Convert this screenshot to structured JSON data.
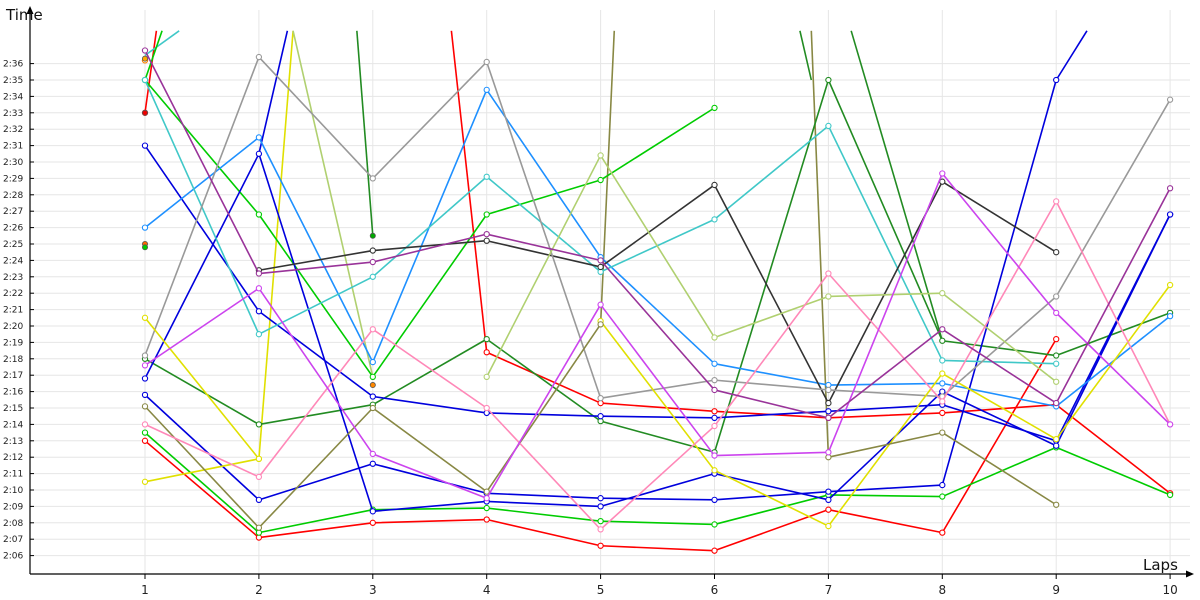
{
  "chart_data": {
    "type": "line",
    "title": "",
    "xlabel": "Laps",
    "ylabel": "Time",
    "x": [
      1,
      2,
      3,
      4,
      5,
      6,
      7,
      8,
      9,
      10
    ],
    "x_tick_labels": [
      "1",
      "2",
      "3",
      "4",
      "5",
      "6",
      "7",
      "8",
      "9",
      "10"
    ],
    "y_tick_labels": [
      "2:06",
      "2:07",
      "2:08",
      "2:09",
      "2:10",
      "2:11",
      "2:12",
      "2:13",
      "2:14",
      "2:15",
      "2:16",
      "2:17",
      "2:18",
      "2:19",
      "2:20",
      "2:21",
      "2:22",
      "2:23",
      "2:24",
      "2:25",
      "2:26",
      "2:27",
      "2:28",
      "2:29",
      "2:30",
      "2:31",
      "2:32",
      "2:33",
      "2:34",
      "2:35",
      "2:36"
    ],
    "ylim_seconds": [
      125,
      156.5
    ],
    "grid": true,
    "legend": "none",
    "series": [
      {
        "color": "#ff0000",
        "values": [
          153.0,
          null,
          null,
          138.4,
          135.3,
          134.8,
          134.4,
          134.7,
          135.2,
          129.8
        ]
      },
      {
        "color": "#ff0000",
        "values": [
          133.0,
          127.1,
          128.0,
          128.2,
          126.6,
          126.3,
          128.8,
          127.4,
          139.2,
          null
        ]
      },
      {
        "color": "#00cc00",
        "values": [
          155.0,
          146.8,
          136.9,
          146.8,
          148.9,
          153.3,
          null,
          null,
          null,
          null
        ]
      },
      {
        "color": "#00cc00",
        "values": [
          133.5,
          127.4,
          128.8,
          128.9,
          128.1,
          127.9,
          129.7,
          129.6,
          132.6,
          129.7
        ]
      },
      {
        "color": "#228b22",
        "values": [
          138.0,
          134.0,
          135.2,
          139.2,
          134.2,
          132.3,
          155.0,
          139.1,
          138.2,
          140.8
        ]
      },
      {
        "color": "#0000dd",
        "values": [
          151.0,
          140.9,
          135.7,
          134.7,
          134.5,
          134.4,
          134.8,
          135.2,
          133.0,
          146.8
        ]
      },
      {
        "color": "#0000dd",
        "values": [
          135.8,
          129.4,
          131.6,
          129.8,
          129.5,
          129.4,
          129.9,
          130.3,
          155.0,
          null
        ]
      },
      {
        "color": "#0000dd",
        "values": [
          136.8,
          150.5,
          128.7,
          129.3,
          129.0,
          131.0,
          129.4,
          136.0,
          132.7,
          146.8
        ]
      },
      {
        "color": "#1e90ff",
        "values": [
          146.0,
          151.5,
          137.8,
          154.4,
          144.2,
          137.7,
          136.4,
          136.5,
          135.1,
          140.6
        ]
      },
      {
        "color": "#40c8c8",
        "values": [
          155.0,
          139.5,
          143.0,
          149.1,
          143.3,
          146.5,
          152.2,
          137.9,
          137.7,
          null
        ]
      },
      {
        "color": "#333333",
        "values": [
          null,
          143.4,
          144.6,
          145.2,
          143.6,
          148.6,
          135.3,
          148.8,
          144.5,
          null
        ]
      },
      {
        "color": "#999999",
        "values": [
          138.2,
          156.4,
          149.0,
          156.1,
          135.6,
          136.7,
          136.1,
          135.7,
          141.8,
          153.8
        ]
      },
      {
        "color": "#b0d070",
        "values": [
          null,
          null,
          null,
          136.9,
          150.4,
          139.3,
          141.8,
          142.0,
          136.6,
          null
        ]
      },
      {
        "color": "#e0e000",
        "values": [
          140.5,
          131.9,
          null,
          null,
          140.3,
          131.2,
          127.8,
          137.1,
          133.1,
          142.5
        ]
      },
      {
        "color": "#e0e000",
        "values": [
          130.5,
          131.9,
          null,
          null,
          null,
          null,
          null,
          null,
          null,
          null
        ]
      },
      {
        "color": "#888844",
        "values": [
          135.1,
          127.7,
          135.0,
          129.9,
          140.1,
          null,
          null,
          null,
          null,
          null
        ]
      },
      {
        "color": "#888844",
        "values": [
          null,
          null,
          null,
          null,
          null,
          null,
          132.0,
          133.5,
          129.1,
          null
        ]
      },
      {
        "color": "#ff88b8",
        "values": [
          134.0,
          130.8,
          139.8,
          135.0,
          127.6,
          133.9,
          143.2,
          135.4,
          147.6,
          134.0
        ]
      },
      {
        "color": "#cc44ee",
        "values": [
          137.6,
          142.3,
          132.2,
          129.5,
          141.3,
          132.1,
          132.3,
          149.3,
          140.8,
          134.0
        ]
      },
      {
        "color": "#993399",
        "values": [
          156.8,
          143.2,
          143.9,
          145.6,
          144.0,
          136.1,
          134.4,
          139.8,
          135.3,
          148.4
        ]
      },
      {
        "color": "#ff6633",
        "values": [
          156.2,
          null,
          null,
          null,
          null,
          null,
          null,
          null,
          null,
          null
        ]
      },
      {
        "color": "#ff8800",
        "values": [
          156.2,
          null,
          null,
          null,
          null,
          null,
          null,
          null,
          null,
          null
        ]
      }
    ],
    "isolated_points": [
      {
        "color": "#ff6600",
        "x": 1,
        "value": 145.0
      },
      {
        "color": "#00cc00",
        "x": 1,
        "value": 144.8
      },
      {
        "color": "#ffaa00",
        "x": 1,
        "value": 156.3
      },
      {
        "color": "#ee0000",
        "x": 1,
        "value": 153.0
      },
      {
        "color": "#00aa00",
        "x": 3,
        "value": 145.5
      },
      {
        "color": "#ff8800",
        "x": 3,
        "value": 136.4
      }
    ],
    "offscreen_segments": [
      {
        "color": "#ff0000",
        "x": [
          1,
          1.1
        ],
        "values": [
          153.0,
          158.0
        ]
      },
      {
        "color": "#40c8c8",
        "x": [
          1,
          1.3
        ],
        "values": [
          156.5,
          158.0
        ]
      },
      {
        "color": "#00cc00",
        "x": [
          1,
          1.15
        ],
        "values": [
          155.0,
          158.0
        ]
      },
      {
        "color": "#0000dd",
        "x": [
          2,
          2.25
        ],
        "values": [
          150.5,
          158.0
        ]
      },
      {
        "color": "#e0e000",
        "x": [
          2,
          2.3
        ],
        "values": [
          131.9,
          158.0
        ]
      },
      {
        "color": "#b0d070",
        "x": [
          2.3,
          3.0
        ],
        "values": [
          158.0,
          136.9
        ]
      },
      {
        "color": "#228b22",
        "x": [
          2.86,
          3.0
        ],
        "values": [
          158.0,
          145.5
        ]
      },
      {
        "color": "#ff0000",
        "x": [
          3.69,
          4.0
        ],
        "values": [
          158.0,
          138.4
        ]
      },
      {
        "color": "#888844",
        "x": [
          5.0,
          5.12
        ],
        "values": [
          140.1,
          158.0
        ]
      },
      {
        "color": "#228b22",
        "x": [
          6.75,
          6.85
        ],
        "values": [
          158.0,
          155.0
        ]
      },
      {
        "color": "#888844",
        "x": [
          6.85,
          7.0
        ],
        "values": [
          158.0,
          132.0
        ]
      },
      {
        "color": "#228b22",
        "x": [
          7.2,
          8.0
        ],
        "values": [
          158.0,
          139.1
        ]
      },
      {
        "color": "#0000dd",
        "x": [
          9.0,
          9.27
        ],
        "values": [
          155.0,
          158.0
        ]
      }
    ]
  }
}
